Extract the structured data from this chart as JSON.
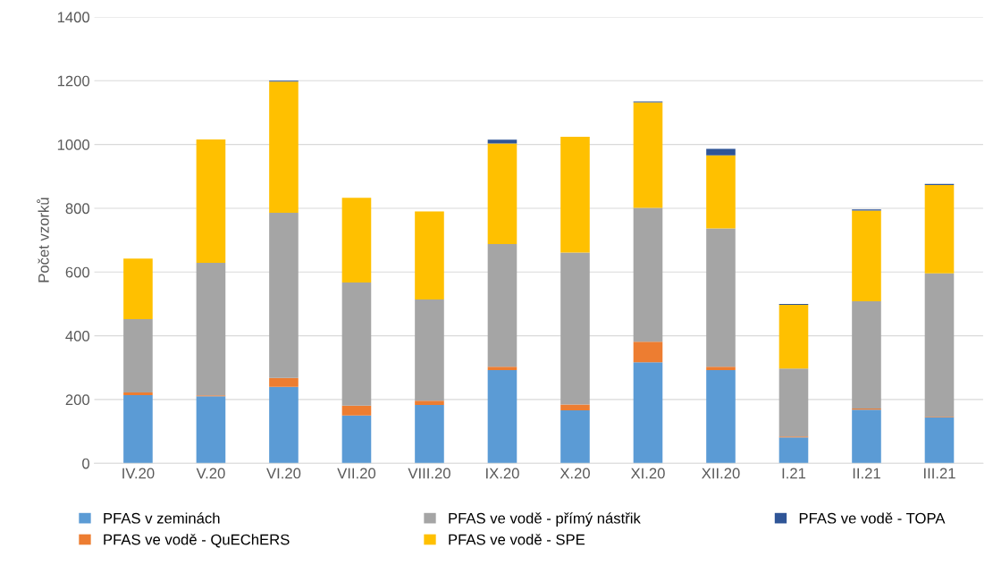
{
  "chart_data": {
    "type": "bar",
    "stacked": true,
    "ylabel": "Počet vzorků",
    "categories": [
      "IV.20",
      "V.20",
      "VI.20",
      "VII.20",
      "VIII.20",
      "IX.20",
      "X.20",
      "XI.20",
      "XII.20",
      "I.21",
      "II.21",
      "III.21"
    ],
    "series": [
      {
        "name": "PFAS v zeminách",
        "color": "#5b9bd5",
        "values": [
          214,
          210,
          240,
          150,
          183,
          292,
          166,
          317,
          292,
          81,
          168,
          144
        ]
      },
      {
        "name": "PFAS ve vodě - QuEChERS",
        "color": "#ed7d31",
        "values": [
          8,
          3,
          28,
          31,
          13,
          11,
          18,
          64,
          11,
          3,
          4,
          2
        ]
      },
      {
        "name": "PFAS ve vodě - přímý nástřik",
        "color": "#a5a5a5",
        "values": [
          230,
          416,
          518,
          386,
          318,
          385,
          477,
          420,
          434,
          213,
          336,
          450
        ]
      },
      {
        "name": "PFAS ve vodě - SPE",
        "color": "#ffc000",
        "values": [
          190,
          387,
          411,
          266,
          276,
          315,
          363,
          331,
          229,
          200,
          285,
          277
        ]
      },
      {
        "name": "PFAS ve vodě - TOPA",
        "color": "#2f5597",
        "values": [
          0,
          0,
          3,
          0,
          0,
          12,
          0,
          3,
          20,
          3,
          3,
          3
        ]
      }
    ],
    "ylim": [
      0,
      1400
    ],
    "yticks": [
      0,
      200,
      400,
      600,
      800,
      1000,
      1200,
      1400
    ],
    "grid": "y",
    "legend": "bottom"
  }
}
